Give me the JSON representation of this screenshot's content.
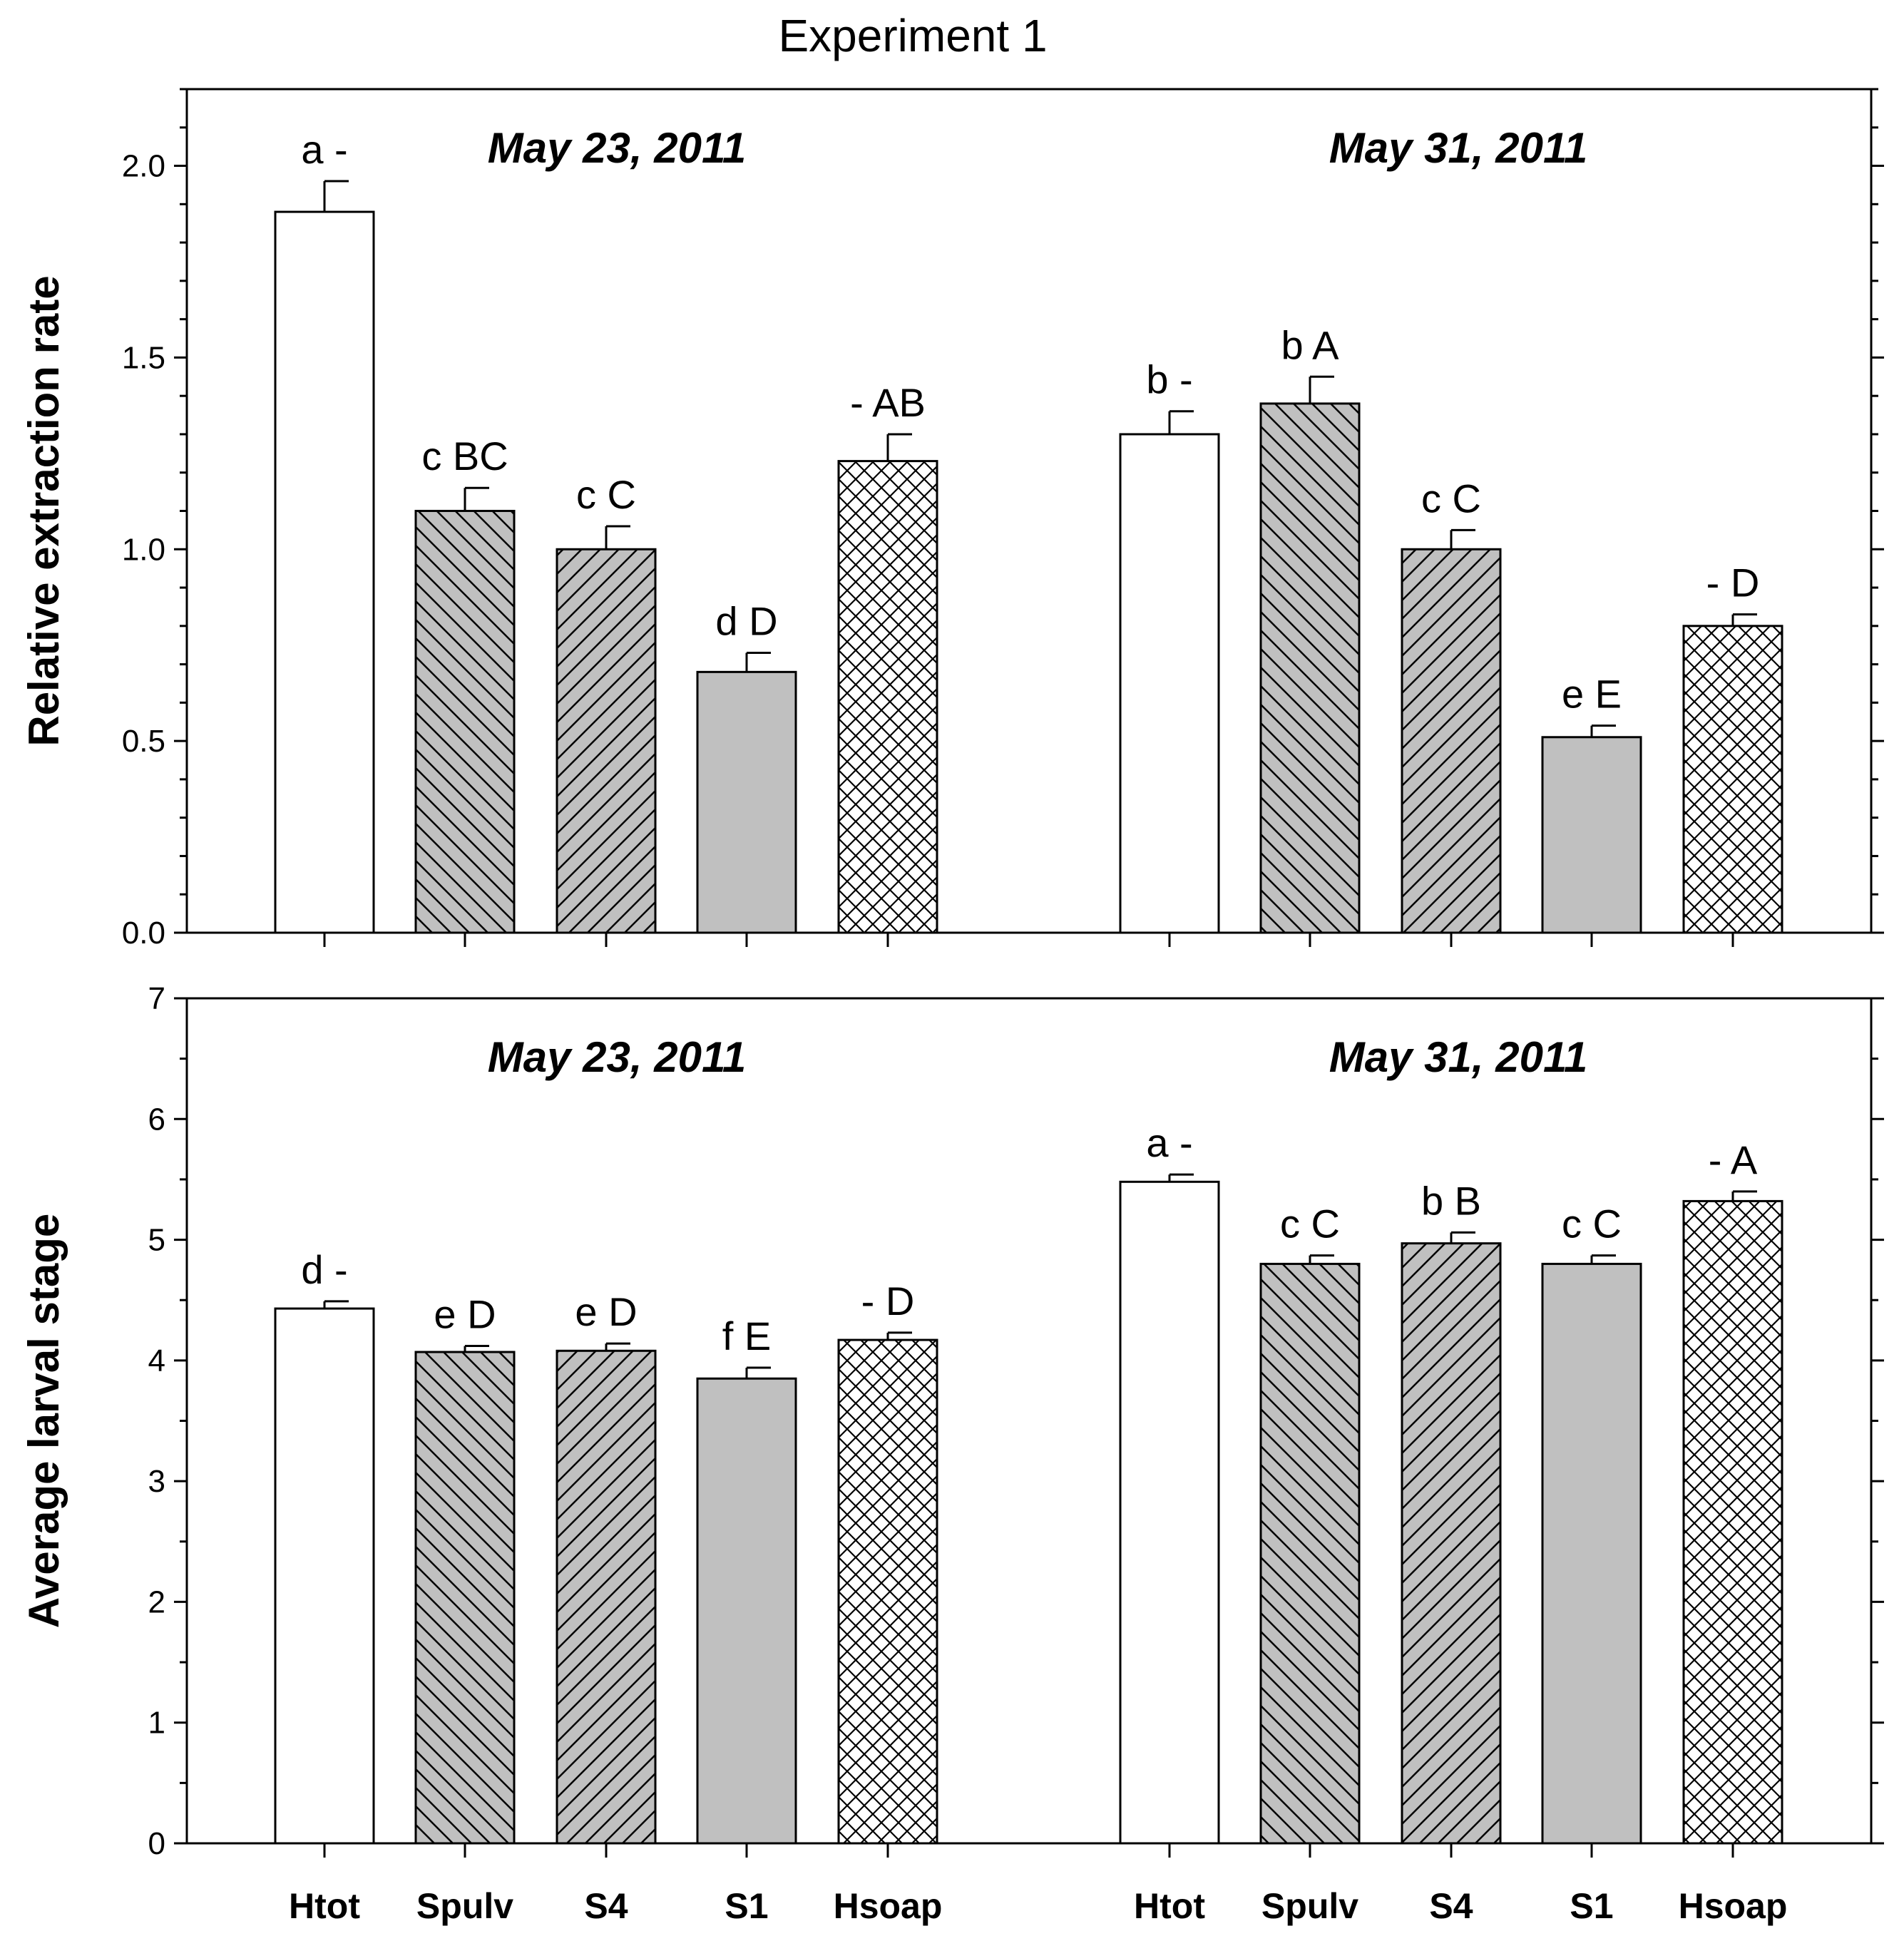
{
  "chart_data": {
    "title": "Experiment 1",
    "categories": [
      "Htot",
      "Spulv",
      "S4",
      "S1",
      "Hsoap"
    ],
    "groups": [
      "May 23, 2011",
      "May 31, 2011"
    ],
    "fill_colors": {
      "Htot": "#ffffff",
      "Spulv": "#c0c0c0",
      "S4": "#c0c0c0",
      "S1": "#c0c0c0",
      "Hsoap": "#ffffff"
    },
    "patterns": {
      "Htot": "none",
      "Spulv": "back-diagonal",
      "S4": "forward-diagonal",
      "S1": "none",
      "Hsoap": "crosshatch"
    },
    "panels": [
      {
        "type": "bar",
        "ylabel": "Relative extraction rate",
        "ylim": [
          0,
          2.2
        ],
        "yticks": [
          "0.0",
          "0.5",
          "1.0",
          "1.5",
          "2.0"
        ],
        "series": [
          {
            "name": "May 23, 2011",
            "values": [
              1.88,
              1.1,
              1.0,
              0.68,
              1.23
            ],
            "errors": [
              0.08,
              0.06,
              0.06,
              0.05,
              0.07
            ],
            "labels": [
              "a -",
              "c BC",
              "c C",
              "d D",
              "- AB"
            ]
          },
          {
            "name": "May 31, 2011",
            "values": [
              1.3,
              1.38,
              1.0,
              0.51,
              0.8
            ],
            "errors": [
              0.06,
              0.07,
              0.05,
              0.03,
              0.03
            ],
            "labels": [
              "b -",
              "b A",
              "c C",
              "e E",
              "- D"
            ]
          }
        ]
      },
      {
        "type": "bar",
        "ylabel": "Average larval stage",
        "ylim": [
          0,
          7
        ],
        "yticks": [
          "0",
          "1",
          "2",
          "3",
          "4",
          "5",
          "6",
          "7"
        ],
        "series": [
          {
            "name": "May 23, 2011",
            "values": [
              4.43,
              4.07,
              4.08,
              3.85,
              4.17
            ],
            "errors": [
              0.06,
              0.05,
              0.06,
              0.09,
              0.06
            ],
            "labels": [
              "d -",
              "e D",
              "e D",
              "f E",
              "- D"
            ]
          },
          {
            "name": "May 31, 2011",
            "values": [
              5.48,
              4.8,
              4.97,
              4.8,
              5.32
            ],
            "errors": [
              0.06,
              0.07,
              0.09,
              0.07,
              0.08
            ],
            "labels": [
              "a -",
              "c C",
              "b B",
              "c C",
              "- A"
            ]
          }
        ]
      }
    ]
  }
}
